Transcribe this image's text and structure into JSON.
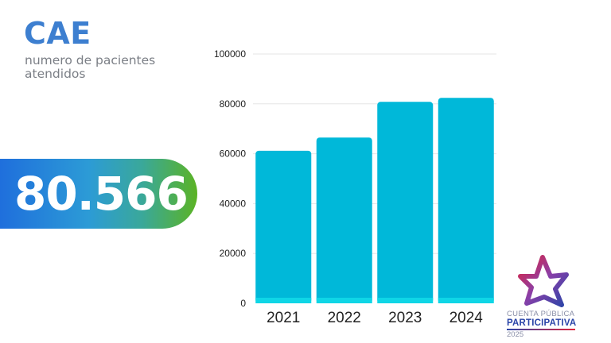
{
  "header": {
    "title": "CAE",
    "subtitle": "numero de pacientes atendidos"
  },
  "highlight": {
    "value": "80.566"
  },
  "logo": {
    "line1": "CUENTA PÚBLICA",
    "line2": "PARTICIPATIVA",
    "line3": "2025",
    "colors": {
      "star_start": "#e0243c",
      "star_end": "#2a45a8"
    }
  },
  "chart_data": {
    "type": "bar",
    "categories": [
      "2021",
      "2022",
      "2023",
      "2024"
    ],
    "values": [
      61200,
      66500,
      80800,
      82400
    ],
    "ylim": [
      0,
      100000
    ],
    "yticks": [
      "0",
      "20000",
      "40000",
      "60000",
      "80000",
      "100000"
    ],
    "grid": true,
    "colors": {
      "bar": "#00b8d9",
      "bar_base": "#0fd6e6",
      "grid": "#e6e6e6"
    }
  }
}
